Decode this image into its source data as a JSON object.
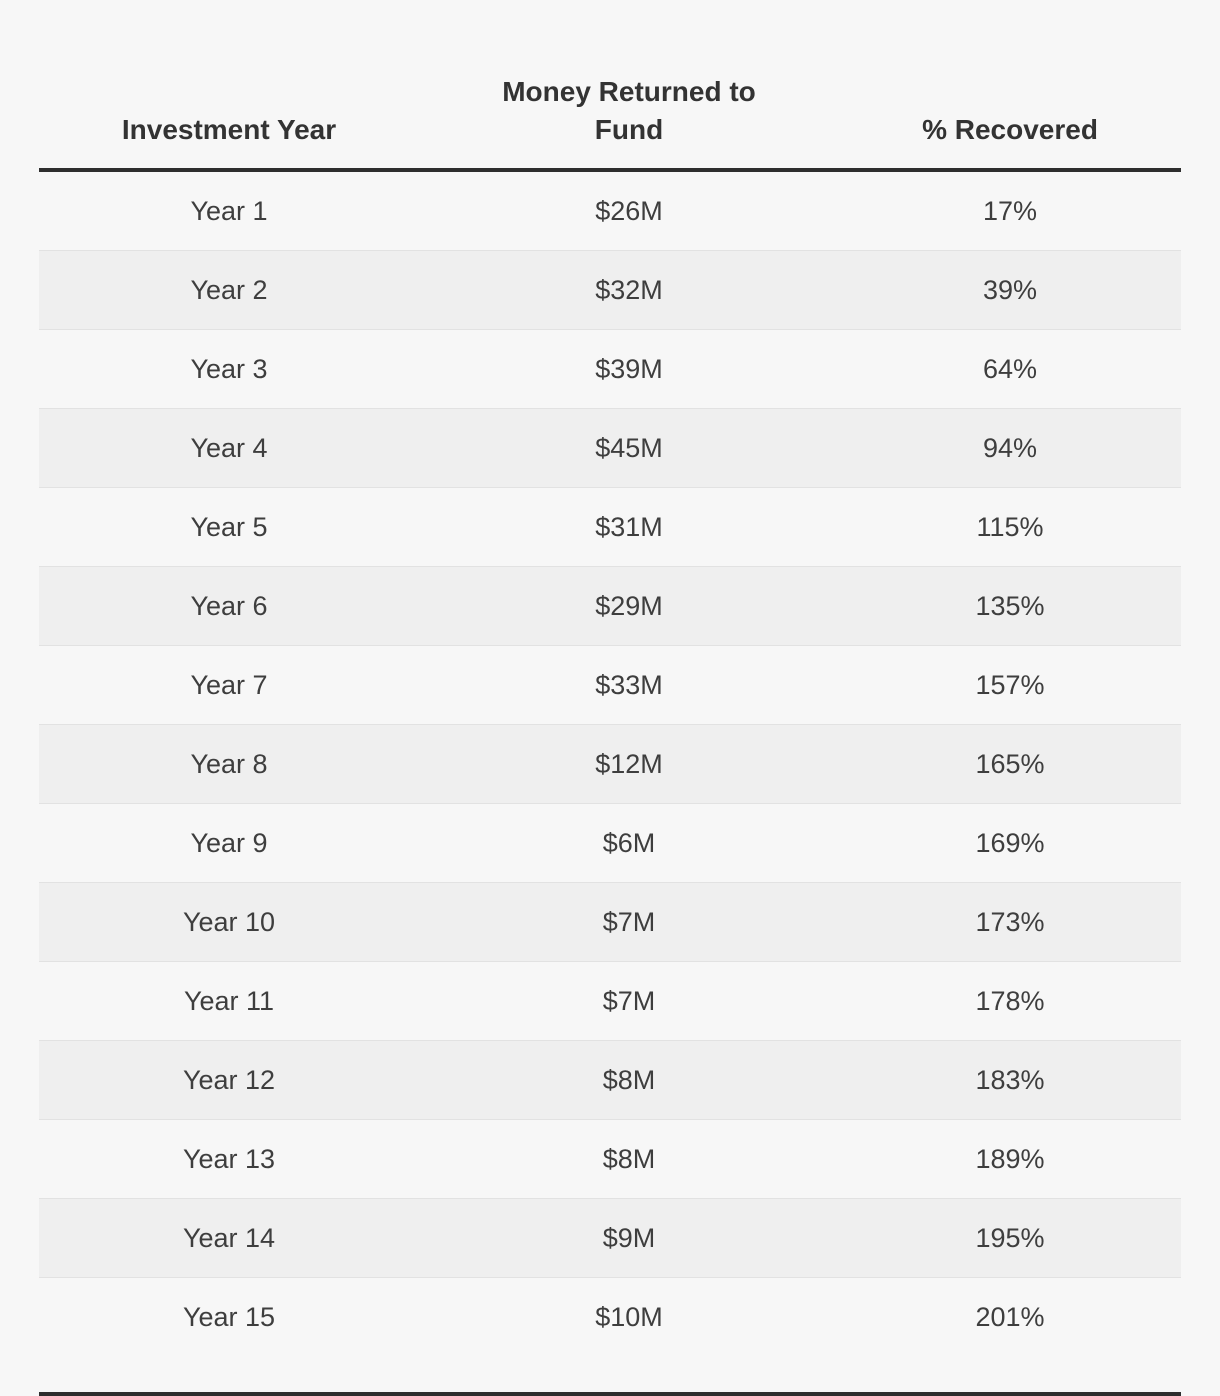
{
  "colors": {
    "background": "#f7f7f7",
    "stripe": "#efefef",
    "stripe_edge": "#e2e2e2",
    "rule": "#2e2e2e",
    "header_text": "#333333",
    "body_text": "#3e3e3e"
  },
  "chart_data": {
    "type": "table",
    "columns": [
      "Investment Year",
      "Money Returned to Fund",
      "% Recovered"
    ],
    "rows": [
      [
        "Year 1",
        "$26M",
        "17%"
      ],
      [
        "Year 2",
        "$32M",
        "39%"
      ],
      [
        "Year 3",
        "$39M",
        "64%"
      ],
      [
        "Year 4",
        "$45M",
        "94%"
      ],
      [
        "Year 5",
        "$31M",
        "115%"
      ],
      [
        "Year 6",
        "$29M",
        "135%"
      ],
      [
        "Year 7",
        "$33M",
        "157%"
      ],
      [
        "Year 8",
        "$12M",
        "165%"
      ],
      [
        "Year 9",
        "$6M",
        "169%"
      ],
      [
        "Year 10",
        "$7M",
        "173%"
      ],
      [
        "Year 11",
        "$7M",
        "178%"
      ],
      [
        "Year 12",
        "$8M",
        "183%"
      ],
      [
        "Year 13",
        "$8M",
        "189%"
      ],
      [
        "Year 14",
        "$9M",
        "195%"
      ],
      [
        "Year 15",
        "$10M",
        "201%"
      ]
    ]
  }
}
